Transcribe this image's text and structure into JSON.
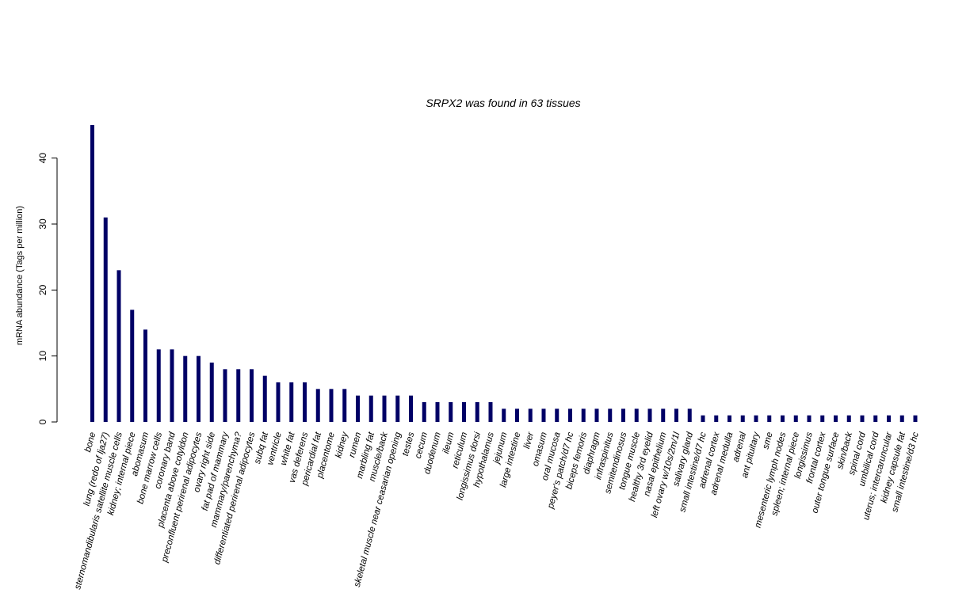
{
  "chart_data": {
    "type": "bar",
    "title": "SRPX2  was found in  63  tissues",
    "xlabel": "",
    "ylabel": "mRNA abundance (Tags per million)",
    "ylim": [
      0,
      45
    ],
    "yticks": [
      0,
      10,
      20,
      30,
      40
    ],
    "grid": false,
    "legend": "none",
    "bar_color": "#000066",
    "categories": [
      "bone",
      "lung (redo of lja27)",
      "sternomandibularis satellite muscle cells",
      "kidney; internal piece",
      "abomasum",
      "bone marrow cells",
      "coronary band",
      "placenta above cotyldon",
      "preconfluent perirenal adipocytes",
      "ovary right side",
      "fat pad of mammary",
      "mammary/parenchyma?",
      "differentiated perirenal adipocytes",
      "subq fat",
      "ventricle",
      "white fat",
      "vas deferens",
      "pericardial fat",
      "placentome",
      "kidney",
      "rumen",
      "marbling fat",
      "muscle/back",
      "skeletal muscle near ceasarian opening",
      "testes",
      "cecum",
      "duodenum",
      "ileum",
      "reticulum",
      "longissimus dorsi",
      "hypothalamus",
      "jejunum",
      "large intestine",
      "liver",
      "omasum",
      "oral mucosa",
      "peyer's patch/d7 hc",
      "biceps femoris",
      "diaphragm",
      "infraspinitus",
      "semitendinosus",
      "tongue muscle",
      "healthy 3rd eyelid",
      "nasal epithelium",
      "left ovary w/10s/2m/1l",
      "salivary gland",
      "small intestine/d7 hc",
      "adrenal cortex",
      "adrenal medulla",
      "adrenal",
      "ant pituitary",
      "sme",
      "mesenteric lymph nodes",
      "spleen; internal piece",
      "longissimus",
      "frontal cortex",
      "outer tongue surface",
      "skin/back",
      "spinal cord",
      "umbilical cord",
      "uterus; intercaruncular",
      "kidney capsule fat",
      "small intestine/d3 hc"
    ],
    "values": [
      45,
      31,
      23,
      17,
      14,
      11,
      11,
      10,
      10,
      9,
      8,
      8,
      8,
      7,
      6,
      6,
      6,
      5,
      5,
      5,
      4,
      4,
      4,
      4,
      4,
      3,
      3,
      3,
      3,
      3,
      3,
      2,
      2,
      2,
      2,
      2,
      2,
      2,
      2,
      2,
      2,
      2,
      2,
      2,
      2,
      2,
      1,
      1,
      1,
      1,
      1,
      1,
      1,
      1,
      1,
      1,
      1,
      1,
      1,
      1,
      1,
      1,
      1
    ]
  }
}
